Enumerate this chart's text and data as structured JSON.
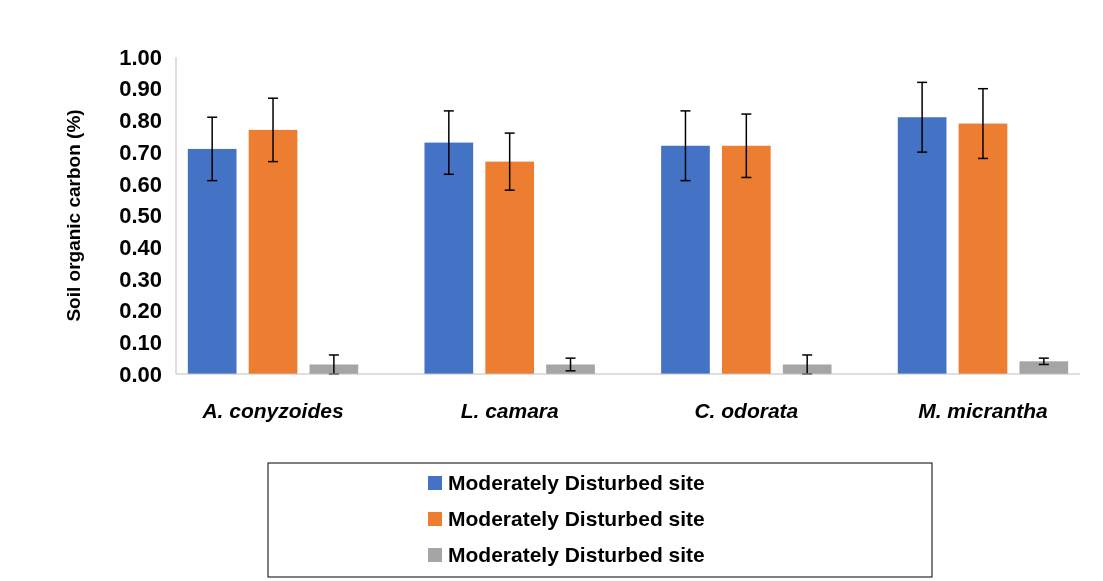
{
  "chart_data": {
    "type": "bar",
    "ylabel": "Soil organic carbon (%)",
    "categories": [
      "A. conyzoides",
      "L. camara",
      "C. odorata",
      "M. micrantha"
    ],
    "series": [
      {
        "name": "Moderately Disturbed site",
        "color": "#4472c4",
        "values": [
          0.71,
          0.73,
          0.72,
          0.81
        ],
        "errors": [
          0.1,
          0.1,
          0.11,
          0.11
        ]
      },
      {
        "name": "Moderately Disturbed site",
        "color": "#ed7d31",
        "values": [
          0.77,
          0.67,
          0.72,
          0.79
        ],
        "errors": [
          0.1,
          0.09,
          0.1,
          0.11
        ]
      },
      {
        "name": "Moderately Disturbed site",
        "color": "#a5a5a5",
        "values": [
          0.03,
          0.03,
          0.03,
          0.04
        ],
        "errors": [
          0.03,
          0.02,
          0.03,
          0.01
        ]
      }
    ],
    "ylim": [
      0,
      1
    ],
    "yticks": [
      {
        "value": 0,
        "label": "0.00"
      },
      {
        "value": 0.1,
        "label": "0.10"
      },
      {
        "value": 0.2,
        "label": "0.20"
      },
      {
        "value": 0.3,
        "label": "0.30"
      },
      {
        "value": 0.4,
        "label": "0.40"
      },
      {
        "value": 0.5,
        "label": "0.50"
      },
      {
        "value": 0.6,
        "label": "0.60"
      },
      {
        "value": 0.7,
        "label": "0.70"
      },
      {
        "value": 0.8,
        "label": "0.80"
      },
      {
        "value": 0.9,
        "label": "0.90"
      },
      {
        "value": 1,
        "label": "1.00"
      }
    ],
    "grid": false,
    "legend": "bottom"
  }
}
